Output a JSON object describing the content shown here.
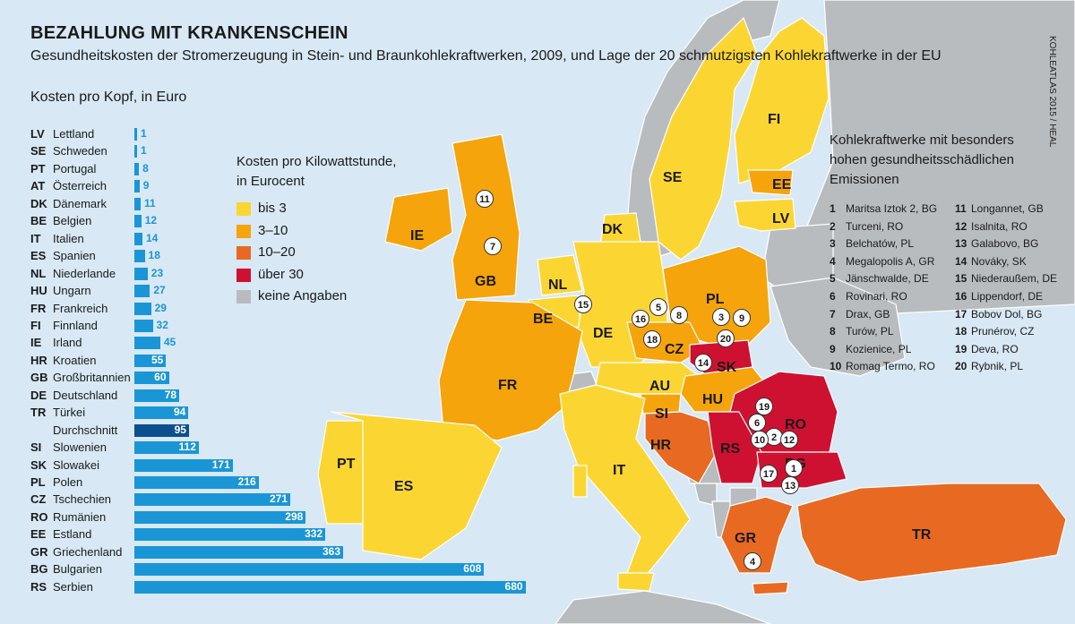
{
  "title": "BEZAHLUNG MIT KRANKENSCHEIN",
  "subtitle": "Gesundheitskosten der Stromerzeugung in Stein- und Braunkohlekraftwerken, 2009, und Lage der 20 schmutzigsten Kohlekraftwerke in der EU",
  "credit": "KOHLEATLAS 2015 / HEAL",
  "bar_chart": {
    "heading": "Kosten pro Kopf, in Euro",
    "rows": [
      {
        "code": "LV",
        "name": "Lettland",
        "value": 1
      },
      {
        "code": "SE",
        "name": "Schweden",
        "value": 1
      },
      {
        "code": "PT",
        "name": "Portugal",
        "value": 8
      },
      {
        "code": "AT",
        "name": "Österreich",
        "value": 9
      },
      {
        "code": "DK",
        "name": "Dänemark",
        "value": 11
      },
      {
        "code": "BE",
        "name": "Belgien",
        "value": 12
      },
      {
        "code": "IT",
        "name": "Italien",
        "value": 14
      },
      {
        "code": "ES",
        "name": "Spanien",
        "value": 18
      },
      {
        "code": "NL",
        "name": "Niederlande",
        "value": 23
      },
      {
        "code": "HU",
        "name": "Ungarn",
        "value": 27
      },
      {
        "code": "FR",
        "name": "Frankreich",
        "value": 29
      },
      {
        "code": "FI",
        "name": "Finnland",
        "value": 32
      },
      {
        "code": "IE",
        "name": "Irland",
        "value": 45
      },
      {
        "code": "HR",
        "name": "Kroatien",
        "value": 55
      },
      {
        "code": "GB",
        "name": "Großbritannien",
        "value": 60
      },
      {
        "code": "DE",
        "name": "Deutschland",
        "value": 78
      },
      {
        "code": "TR",
        "name": "Türkei",
        "value": 94
      },
      {
        "code": "",
        "name": "Durchschnitt",
        "value": 95,
        "average": true
      },
      {
        "code": "SI",
        "name": "Slowenien",
        "value": 112
      },
      {
        "code": "SK",
        "name": "Slowakei",
        "value": 171
      },
      {
        "code": "PL",
        "name": "Polen",
        "value": 216
      },
      {
        "code": "CZ",
        "name": "Tschechien",
        "value": 271
      },
      {
        "code": "RO",
        "name": "Rumänien",
        "value": 298
      },
      {
        "code": "EE",
        "name": "Estland",
        "value": 332
      },
      {
        "code": "GR",
        "name": "Griechenland",
        "value": 363
      },
      {
        "code": "BG",
        "name": "Bulgarien",
        "value": 608
      },
      {
        "code": "RS",
        "name": "Serbien",
        "value": 680
      }
    ]
  },
  "legend": {
    "title_line1": "Kosten pro Kilowattstunde,",
    "title_line2": "in Eurocent",
    "items": [
      {
        "label": "bis 3",
        "color": "#fbd633"
      },
      {
        "label": "3–10",
        "color": "#f5a40b"
      },
      {
        "label": "10–20",
        "color": "#e86a22"
      },
      {
        "label": "über 30",
        "color": "#cf1131"
      },
      {
        "label": "keine Angaben",
        "color": "#b9bcbf"
      }
    ]
  },
  "plants": {
    "heading_line1": "Kohlekraftwerke mit besonders",
    "heading_line2": "hohen gesundheitsschädlichen",
    "heading_line3": "Emissionen",
    "items": [
      {
        "n": "1",
        "name": "Maritsa Iztok 2, BG"
      },
      {
        "n": "2",
        "name": "Turceni, RO"
      },
      {
        "n": "3",
        "name": "Belchatów, PL"
      },
      {
        "n": "4",
        "name": "Megalopolis A, GR"
      },
      {
        "n": "5",
        "name": "Jänschwalde, DE"
      },
      {
        "n": "6",
        "name": "Rovinari, RO"
      },
      {
        "n": "7",
        "name": "Drax, GB"
      },
      {
        "n": "8",
        "name": "Turów, PL"
      },
      {
        "n": "9",
        "name": "Kozienice, PL"
      },
      {
        "n": "10",
        "name": "Romag Termo, RO"
      },
      {
        "n": "11",
        "name": "Longannet, GB"
      },
      {
        "n": "12",
        "name": "Isalnita, RO"
      },
      {
        "n": "13",
        "name": "Galabovo, BG"
      },
      {
        "n": "14",
        "name": "Nováky, SK"
      },
      {
        "n": "15",
        "name": "Niederaußem, DE"
      },
      {
        "n": "16",
        "name": "Lippendorf, DE"
      },
      {
        "n": "17",
        "name": "Bobov Dol, BG"
      },
      {
        "n": "18",
        "name": "Prunérov, CZ"
      },
      {
        "n": "19",
        "name": "Deva, RO"
      },
      {
        "n": "20",
        "name": "Rybnik, PL"
      }
    ]
  },
  "map": {
    "colors": {
      "sea": "#d8e8f4",
      "nodata": "#b9bcbf",
      "low": "#fbd633",
      "mid": "#f5a40b",
      "high": "#e86a22",
      "vhigh": "#cf1131"
    },
    "countries": [
      {
        "code": "SE",
        "category": "low"
      },
      {
        "code": "FI",
        "category": "low"
      },
      {
        "code": "EE",
        "category": "mid"
      },
      {
        "code": "LV",
        "category": "low"
      },
      {
        "code": "DK",
        "category": "low"
      },
      {
        "code": "IE",
        "category": "mid"
      },
      {
        "code": "GB",
        "category": "mid"
      },
      {
        "code": "NL",
        "category": "low"
      },
      {
        "code": "BE",
        "category": "low"
      },
      {
        "code": "DE",
        "category": "low"
      },
      {
        "code": "PL",
        "category": "mid"
      },
      {
        "code": "CZ",
        "category": "mid"
      },
      {
        "code": "SK",
        "category": "vhigh"
      },
      {
        "code": "AU",
        "category": "low"
      },
      {
        "code": "HU",
        "category": "mid"
      },
      {
        "code": "FR",
        "category": "mid"
      },
      {
        "code": "SI",
        "category": "mid"
      },
      {
        "code": "HR",
        "category": "high"
      },
      {
        "code": "RO",
        "category": "vhigh"
      },
      {
        "code": "RS",
        "category": "vhigh"
      },
      {
        "code": "BG",
        "category": "vhigh"
      },
      {
        "code": "PT",
        "category": "low"
      },
      {
        "code": "ES",
        "category": "low"
      },
      {
        "code": "IT",
        "category": "low"
      },
      {
        "code": "GR",
        "category": "high"
      },
      {
        "code": "TR",
        "category": "high"
      }
    ]
  }
}
